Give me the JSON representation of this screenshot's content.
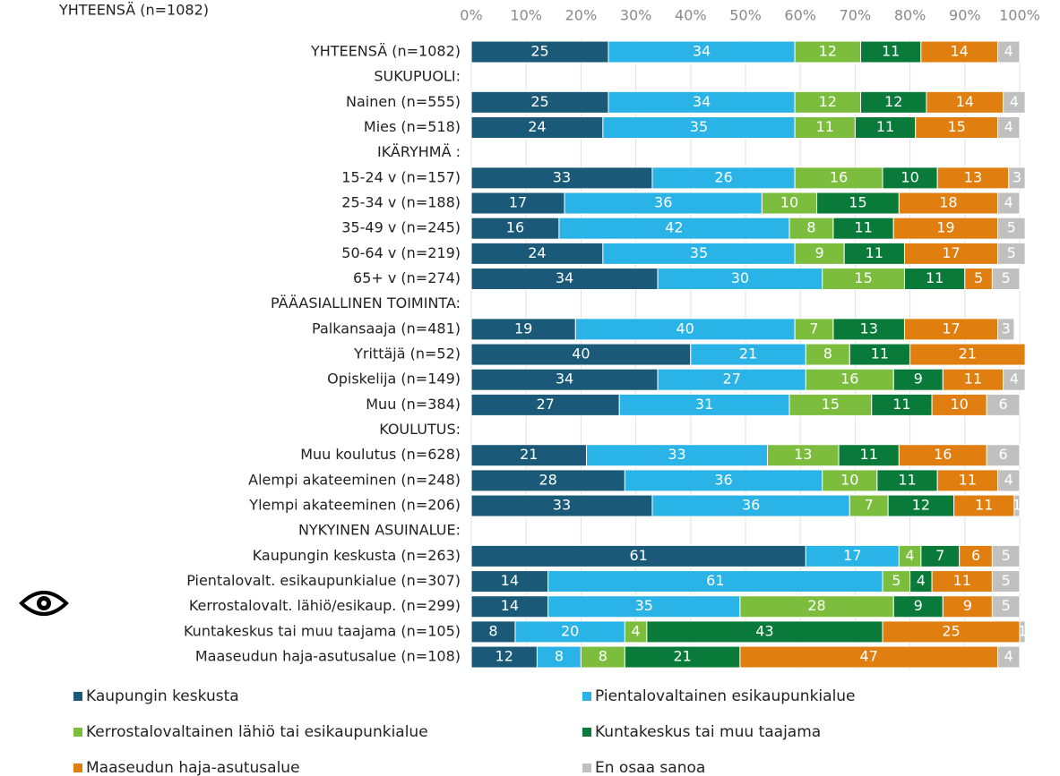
{
  "chart_data": {
    "type": "stacked-bar-horizontal",
    "title": "YHTEENSÄ (n=1082)",
    "categories": [
      "YHTEENSÄ (n=1082)",
      "SUKUPUOLI:",
      "Nainen (n=555)",
      "Mies (n=518)",
      "IKÄRYHMÄ :",
      "15-24 v (n=157)",
      "25-34 v (n=188)",
      "35-49 v (n=245)",
      "50-64 v (n=219)",
      "65+ v (n=274)",
      "PÄÄASIALLINEN  TOIMINTA:",
      "Palkansaaja (n=481)",
      "Yrittäjä (n=52)",
      "Opiskelija (n=149)",
      "Muu (n=384)",
      "KOULUTUS:",
      "Muu koulutus (n=628)",
      "Alempi akateeminen (n=248)",
      "Ylempi akateeminen (n=206)",
      "NYKYINEN ASUINALUE:",
      "Kaupungin keskusta (n=263)",
      "Pientalovalt. esikaupunkialue (n=307)",
      "Kerrostalovalt. lähiö/esikaup. (n=299)",
      "Kuntakeskus tai muu taajama (n=105)",
      "Maaseudun haja-asutusalue (n=108)"
    ],
    "series": [
      {
        "name": "Kaupungin keskusta",
        "color": "#1a5a78",
        "values": [
          25,
          null,
          25,
          24,
          null,
          33,
          17,
          16,
          24,
          34,
          null,
          19,
          40,
          34,
          27,
          null,
          21,
          28,
          33,
          null,
          61,
          14,
          14,
          8,
          12
        ]
      },
      {
        "name": "Pientalovaltainen esikaupunkialue",
        "color": "#2ab3e6",
        "values": [
          34,
          null,
          34,
          35,
          null,
          26,
          36,
          42,
          35,
          30,
          null,
          40,
          21,
          27,
          31,
          null,
          33,
          36,
          36,
          null,
          17,
          61,
          35,
          20,
          8
        ]
      },
      {
        "name": "Kerrostalovaltainen lähiö tai esikaupunkialue",
        "color": "#7dbd3e",
        "values": [
          12,
          null,
          12,
          11,
          null,
          16,
          10,
          8,
          9,
          15,
          null,
          7,
          8,
          16,
          15,
          null,
          13,
          10,
          7,
          null,
          4,
          5,
          28,
          4,
          8
        ]
      },
      {
        "name": "Kuntakeskus tai muu taajama",
        "color": "#0a7a3a",
        "values": [
          11,
          null,
          12,
          11,
          null,
          10,
          15,
          11,
          11,
          11,
          null,
          13,
          11,
          9,
          11,
          null,
          11,
          11,
          12,
          null,
          7,
          4,
          9,
          43,
          21
        ]
      },
      {
        "name": "Maaseudun haja-asutusalue",
        "color": "#e07e10",
        "values": [
          14,
          null,
          14,
          15,
          null,
          13,
          18,
          19,
          17,
          5,
          null,
          17,
          21,
          11,
          10,
          null,
          16,
          11,
          11,
          null,
          6,
          11,
          9,
          25,
          47
        ]
      },
      {
        "name": "En osaa sanoa",
        "color": "#c0c0c0",
        "values": [
          4,
          null,
          4,
          4,
          null,
          3,
          4,
          5,
          5,
          5,
          null,
          3,
          null,
          4,
          6,
          null,
          6,
          4,
          1,
          null,
          5,
          5,
          5,
          1,
          4
        ]
      }
    ],
    "xlim": [
      0,
      100
    ],
    "xticks": [
      {
        "value": 0,
        "label": "0%"
      },
      {
        "value": 10,
        "label": "10%"
      },
      {
        "value": 20,
        "label": "20%"
      },
      {
        "value": 30,
        "label": "30%"
      },
      {
        "value": 40,
        "label": "40%"
      },
      {
        "value": 50,
        "label": "50%"
      },
      {
        "value": 60,
        "label": "60%"
      },
      {
        "value": 70,
        "label": "70%"
      },
      {
        "value": 80,
        "label": "80%"
      },
      {
        "value": 90,
        "label": "90%"
      },
      {
        "value": 100,
        "label": "100%"
      }
    ],
    "grid": true
  }
}
